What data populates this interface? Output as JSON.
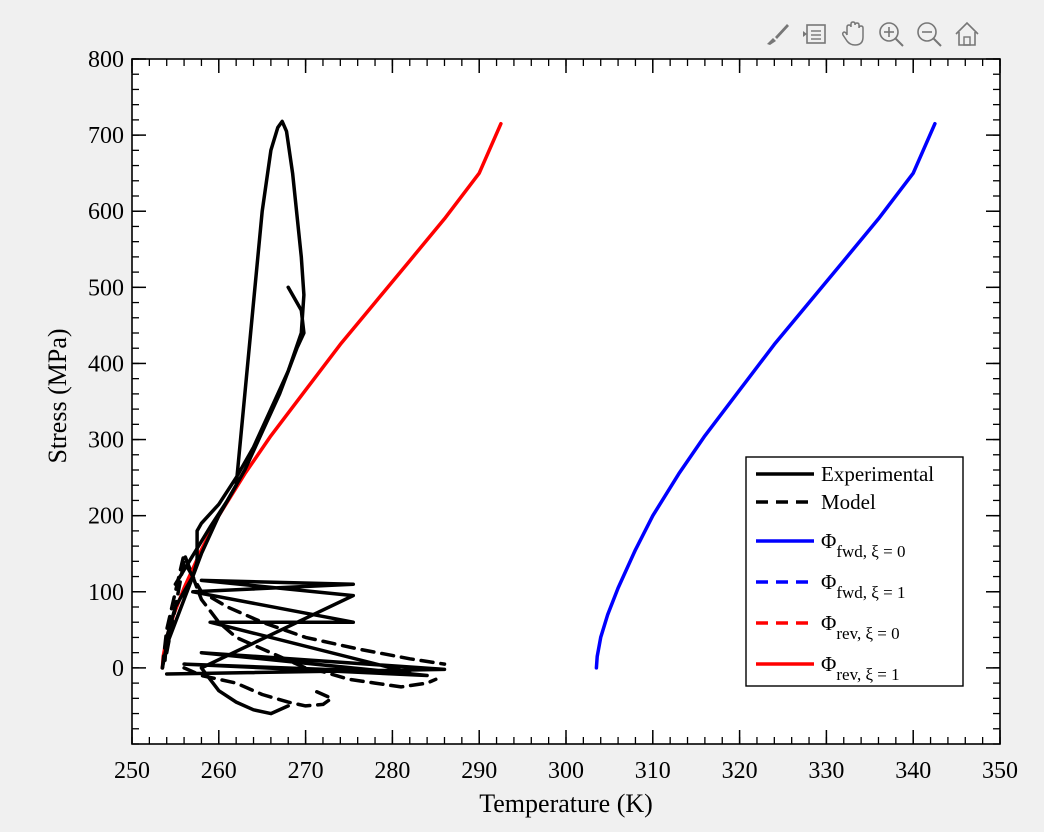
{
  "toolbar": {
    "icons": [
      "brush-icon",
      "data-tips-icon",
      "pan-hand-icon",
      "zoom-in-icon",
      "zoom-out-icon",
      "home-icon"
    ]
  },
  "colors": {
    "black": "#000000",
    "blue": "#0000ff",
    "red": "#ff0000",
    "background": "#f0f0f0",
    "axes_bg": "#ffffff"
  },
  "chart_data": {
    "type": "line",
    "title": "",
    "xlabel": "Temperature (K)",
    "ylabel": "Stress (MPa)",
    "xlim": [
      250,
      350
    ],
    "ylim": [
      -100,
      800
    ],
    "xticks": [
      250,
      260,
      270,
      280,
      290,
      300,
      310,
      320,
      330,
      340,
      350
    ],
    "yticks": [
      0,
      100,
      200,
      300,
      400,
      500,
      600,
      700,
      800
    ],
    "grid": false,
    "legend_position": "lower-right",
    "legend": [
      {
        "label": "Experimental",
        "sub": "",
        "color": "#000000",
        "style": "solid"
      },
      {
        "label": "Model",
        "sub": "",
        "color": "#000000",
        "style": "dashed"
      },
      {
        "label": "Φ",
        "sub": "fwd, ξ = 0",
        "color": "#0000ff",
        "style": "solid"
      },
      {
        "label": "Φ",
        "sub": "fwd, ξ = 1",
        "color": "#0000ff",
        "style": "dashed"
      },
      {
        "label": "Φ",
        "sub": "rev, ξ = 0",
        "color": "#ff0000",
        "style": "dashed"
      },
      {
        "label": "Φ",
        "sub": "rev, ξ = 1",
        "color": "#ff0000",
        "style": "solid"
      }
    ],
    "series": [
      {
        "name": "Φfwd, ξ = 0",
        "color": "#0000ff",
        "style": "solid",
        "x": [
          303.5,
          303.6,
          304.0,
          304.8,
          306.0,
          308.0,
          310.0,
          313.0,
          316.0,
          320.0,
          324.0,
          328.0,
          332.0,
          336.0,
          340.0,
          342.5
        ],
        "y": [
          0,
          15,
          40,
          70,
          105,
          155,
          200,
          255,
          305,
          365,
          425,
          480,
          535,
          590,
          650,
          715
        ]
      },
      {
        "name": "Φrev, ξ = 1",
        "color": "#ff0000",
        "style": "solid",
        "x": [
          253.5,
          253.6,
          254.0,
          254.8,
          256.0,
          258.0,
          260.0,
          263.0,
          266.0,
          270.0,
          274.0,
          278.0,
          282.0,
          286.0,
          290.0,
          292.5
        ],
        "y": [
          0,
          15,
          40,
          70,
          105,
          155,
          200,
          255,
          305,
          365,
          425,
          480,
          535,
          590,
          650,
          715
        ]
      },
      {
        "name": "Experimental",
        "color": "#000000",
        "style": "solid",
        "x": [
          253.5,
          254,
          255,
          256,
          257,
          258,
          260,
          262,
          264,
          265,
          266,
          266.8,
          267.3,
          267.8,
          268.5,
          269.5,
          269.8,
          269.5,
          268,
          266,
          264,
          262,
          260,
          258,
          257.5,
          257.5,
          257,
          256,
          255,
          254,
          253.8
        ],
        "y": [
          0,
          30,
          60,
          90,
          120,
          150,
          200,
          240,
          480,
          600,
          680,
          710,
          718,
          705,
          650,
          540,
          490,
          440,
          390,
          340,
          290,
          250,
          215,
          190,
          180,
          140,
          120,
          100,
          80,
          40,
          10
        ]
      },
      {
        "name": "Experimental",
        "color": "#000000",
        "style": "solid",
        "x": [
          255,
          259,
          261,
          263,
          265,
          267,
          269,
          269.8,
          269.5,
          268
        ],
        "y": [
          110,
          185,
          220,
          260,
          310,
          360,
          420,
          440,
          470,
          500
        ]
      },
      {
        "name": "Experimental",
        "color": "#000000",
        "style": "solid",
        "x": [
          254,
          286,
          258,
          284,
          256,
          282,
          259,
          275.5,
          257,
          275.5,
          258,
          275.5,
          258,
          260,
          262,
          264,
          266,
          268
        ],
        "y": [
          -8,
          -2,
          20,
          -10,
          5,
          -6,
          60,
          60,
          100,
          110,
          115,
          95,
          0,
          -30,
          -45,
          -55,
          -60,
          -50
        ]
      },
      {
        "name": "Model",
        "color": "#000000",
        "style": "dashed",
        "x": [
          253.5,
          254,
          255,
          256,
          258,
          260,
          262,
          264,
          266,
          268,
          270,
          272,
          275,
          278,
          281,
          284,
          285
        ],
        "y": [
          0,
          50,
          100,
          150,
          90,
          60,
          40,
          30,
          20,
          10,
          0,
          -5,
          -15,
          -20,
          -25,
          -20,
          -15
        ]
      },
      {
        "name": "Model",
        "color": "#000000",
        "style": "dashed",
        "x": [
          254,
          256,
          258,
          261,
          265,
          270,
          276,
          282,
          286
        ],
        "y": [
          20,
          140,
          100,
          80,
          60,
          40,
          25,
          12,
          5
        ]
      },
      {
        "name": "Model",
        "color": "#000000",
        "style": "dashed",
        "x": [
          256,
          258,
          262,
          265,
          268,
          270,
          272,
          273,
          271
        ],
        "y": [
          0,
          -10,
          -20,
          -35,
          -45,
          -50,
          -48,
          -40,
          -30
        ]
      }
    ]
  }
}
